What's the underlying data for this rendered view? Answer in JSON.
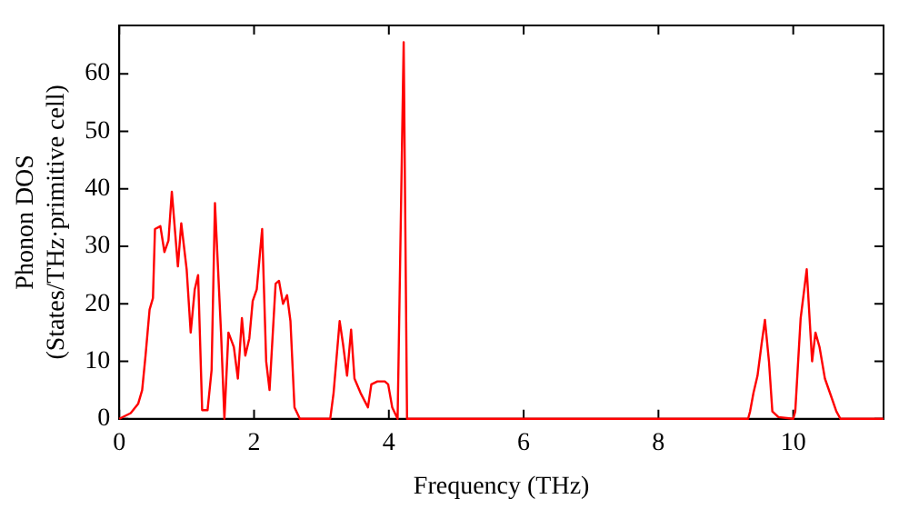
{
  "chart_data": {
    "type": "line",
    "xlabel": "Frequency (THz)",
    "ylabel": "Phonon DOS\n(States/THz·primitive cell)",
    "xlim": [
      0,
      11.34
    ],
    "ylim": [
      0,
      68.4
    ],
    "xticks": [
      0,
      2,
      4,
      6,
      8,
      10
    ],
    "yticks": [
      0,
      10,
      20,
      30,
      40,
      50,
      60
    ],
    "grid": false,
    "legend": false,
    "marker": "none",
    "line_style": "solid",
    "series": [
      {
        "color": "#ff0000",
        "x": [
          0,
          0.17,
          0.28,
          0.34,
          0.39,
          0.45,
          0.5,
          0.53,
          0.61,
          0.67,
          0.73,
          0.78,
          0.87,
          0.92,
          1.0,
          1.06,
          1.12,
          1.17,
          1.23,
          1.31,
          1.37,
          1.42,
          1.51,
          1.56,
          1.62,
          1.7,
          1.76,
          1.82,
          1.87,
          1.93,
          1.98,
          2.04,
          2.12,
          2.18,
          2.23,
          2.32,
          2.37,
          2.43,
          2.49,
          2.54,
          2.6,
          2.68,
          3.13,
          3.18,
          3.27,
          3.32,
          3.38,
          3.44,
          3.49,
          3.58,
          3.69,
          3.74,
          3.83,
          3.94,
          3.99,
          4.05,
          4.13,
          4.22,
          4.27,
          9.33,
          9.36,
          9.41,
          9.47,
          9.53,
          9.58,
          9.64,
          9.69,
          9.78,
          10.0,
          10.03,
          10.11,
          10.2,
          10.28,
          10.33,
          10.39,
          10.47,
          10.56,
          10.64,
          10.7,
          11.34
        ],
        "values": [
          0,
          1,
          2.6,
          5,
          11,
          19,
          21,
          33,
          33.5,
          29,
          31,
          39.5,
          26.5,
          34,
          26,
          15,
          22.5,
          25,
          1.5,
          1.5,
          8.5,
          37.5,
          15,
          0,
          15,
          12.5,
          7,
          17.5,
          11,
          14,
          20.5,
          22.5,
          33,
          10,
          5,
          23.5,
          24,
          20,
          21.5,
          17,
          2,
          0,
          0,
          4.5,
          17,
          13,
          7.5,
          15.5,
          7,
          4.5,
          2,
          6,
          6.5,
          6.5,
          6,
          2,
          0,
          65.5,
          0,
          0,
          1.3,
          4.5,
          7.5,
          13,
          17.2,
          10,
          1.3,
          0.3,
          0,
          1.3,
          17.5,
          26,
          10,
          15,
          12.5,
          7,
          4,
          1.3,
          0,
          0
        ]
      }
    ]
  }
}
